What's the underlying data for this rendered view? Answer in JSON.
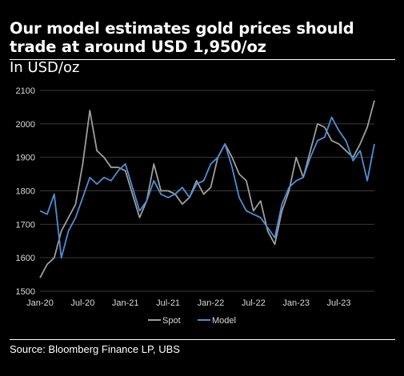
{
  "title": "Our model estimates gold prices should trade at around USD 1,950/oz",
  "subtitle": "In USD/oz",
  "source": "Source: Bloomberg Finance LP, UBS",
  "colors": {
    "background": "#000000",
    "spot": "#9e9e9e",
    "model": "#4d8fd6",
    "grid": "#3a3a3a",
    "text": "#ffffff"
  },
  "chart_data": {
    "type": "line",
    "title": "Our model estimates gold prices should trade at around USD 1,950/oz",
    "ylabel": "In USD/oz",
    "xlabel": "",
    "ylim": [
      1500,
      2100
    ],
    "yticks": [
      1500,
      1600,
      1700,
      1800,
      1900,
      2000,
      2100
    ],
    "xlim": [
      "2020-01",
      "2023-12"
    ],
    "xticks": [
      "Jan-20",
      "Jul-20",
      "Jan-21",
      "Jul-21",
      "Jan-22",
      "Jul-22",
      "Jan-23",
      "Jul-23"
    ],
    "grid": true,
    "legend_position": "bottom-center",
    "x": [
      "2020-01",
      "2020-02",
      "2020-03",
      "2020-04",
      "2020-05",
      "2020-06",
      "2020-07",
      "2020-08",
      "2020-09",
      "2020-10",
      "2020-11",
      "2020-12",
      "2021-01",
      "2021-02",
      "2021-03",
      "2021-04",
      "2021-05",
      "2021-06",
      "2021-07",
      "2021-08",
      "2021-09",
      "2021-10",
      "2021-11",
      "2021-12",
      "2022-01",
      "2022-02",
      "2022-03",
      "2022-04",
      "2022-05",
      "2022-06",
      "2022-07",
      "2022-08",
      "2022-09",
      "2022-10",
      "2022-11",
      "2022-12",
      "2023-01",
      "2023-02",
      "2023-03",
      "2023-04",
      "2023-05",
      "2023-06",
      "2023-07",
      "2023-08",
      "2023-09",
      "2023-10",
      "2023-11",
      "2023-12"
    ],
    "series": [
      {
        "name": "Spot",
        "values": [
          1540,
          1580,
          1600,
          1680,
          1720,
          1760,
          1880,
          2040,
          1920,
          1900,
          1870,
          1870,
          1860,
          1790,
          1720,
          1770,
          1880,
          1800,
          1800,
          1790,
          1760,
          1780,
          1830,
          1790,
          1810,
          1900,
          1940,
          1900,
          1850,
          1830,
          1740,
          1770,
          1680,
          1640,
          1740,
          1800,
          1900,
          1840,
          1920,
          2000,
          1990,
          1950,
          1940,
          1920,
          1900,
          1940,
          1990,
          2070
        ]
      },
      {
        "name": "Model",
        "values": [
          1740,
          1730,
          1790,
          1600,
          1680,
          1720,
          1780,
          1840,
          1820,
          1840,
          1830,
          1860,
          1880,
          1810,
          1740,
          1770,
          1830,
          1790,
          1780,
          1790,
          1810,
          1780,
          1820,
          1830,
          1880,
          1900,
          1940,
          1870,
          1780,
          1740,
          1730,
          1720,
          1690,
          1660,
          1760,
          1810,
          1830,
          1840,
          1900,
          1950,
          1960,
          2020,
          1980,
          1950,
          1890,
          1920,
          1830,
          1940
        ]
      }
    ]
  }
}
